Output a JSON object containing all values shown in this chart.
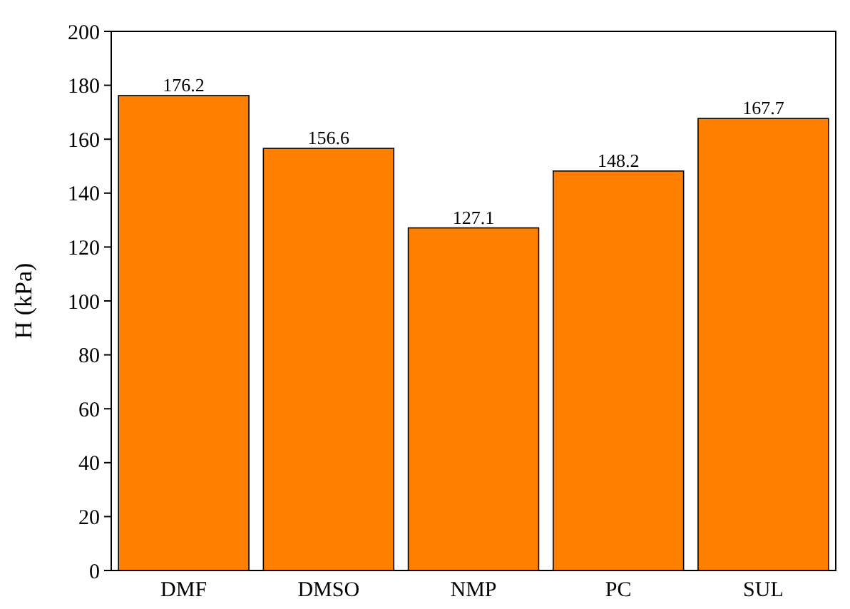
{
  "chart_data": {
    "type": "bar",
    "ylabel": "H (kPa)",
    "categories": [
      "DMF",
      "DMSO",
      "NMP",
      "PC",
      "SUL"
    ],
    "values": [
      176.2,
      156.6,
      127.1,
      148.2,
      167.7
    ],
    "color": "#ff8000",
    "ylim": [
      0,
      200
    ],
    "yticks": [
      0,
      20,
      40,
      60,
      80,
      100,
      120,
      140,
      160,
      180,
      200
    ],
    "data_labels": true
  }
}
